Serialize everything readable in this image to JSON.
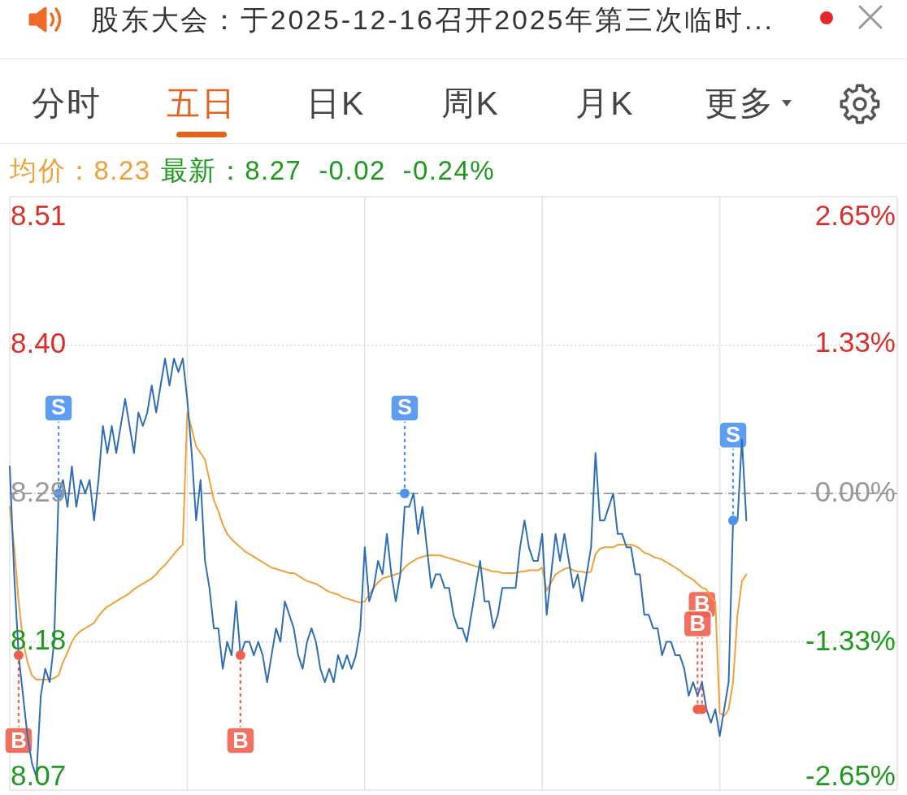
{
  "chart_data": {
    "type": "line",
    "title": "股东大会：于2025-12-16召开2025年第三次临时...",
    "subtitle": "最新：8.27 -0.02 -0.24%",
    "annotations": [
      "分时",
      "五日",
      "日K",
      "周K",
      "月K",
      "更多"
    ],
    "categories": [
      null,
      null,
      null,
      null,
      null,
      null,
      null,
      null,
      null,
      null,
      null,
      null,
      null,
      null,
      null,
      null,
      null,
      null,
      null,
      null,
      null,
      null,
      null,
      null,
      null,
      null,
      null,
      null,
      null,
      null,
      null,
      null,
      null,
      null,
      null,
      null,
      null,
      null,
      null,
      null,
      null,
      null,
      null,
      null,
      null,
      null,
      null,
      null,
      null,
      null,
      null,
      null,
      null,
      null,
      null,
      null,
      null,
      null,
      null,
      null,
      null,
      null,
      null,
      null,
      null,
      null,
      null,
      null,
      null,
      null,
      null,
      null,
      null,
      null,
      null,
      null,
      null,
      null,
      null,
      null,
      null,
      null,
      null,
      null,
      null,
      null,
      null,
      null,
      null,
      null,
      null,
      null,
      null,
      null,
      null,
      null,
      null,
      null,
      null,
      null,
      null,
      null,
      null,
      null,
      null,
      null,
      null,
      null,
      null,
      null,
      null,
      null,
      null,
      null,
      null,
      null,
      null,
      null,
      null,
      null,
      null,
      null,
      null,
      null,
      null,
      null,
      null,
      null,
      null,
      null,
      null,
      null,
      null,
      null,
      null,
      null,
      null,
      null,
      null,
      null,
      null,
      null,
      null,
      null,
      null,
      null,
      null,
      null,
      null,
      null,
      null,
      null,
      null,
      null,
      null,
      null,
      null,
      null,
      null,
      null,
      null,
      null,
      null,
      null,
      null,
      null,
      null,
      null,
      null,
      null,
      null,
      null,
      null,
      null,
      null,
      null,
      null,
      null,
      null,
      null,
      null,
      null,
      null,
      null,
      null,
      null,
      null,
      null,
      null,
      null,
      null,
      null,
      null,
      null,
      null,
      null,
      null,
      null,
      null,
      null,
      null
    ],
    "series": [
      {
        "color": "#2f6db5",
        "values": [
          8.31,
          8.23,
          8.17,
          8.14,
          8.11,
          8.09,
          8.08,
          8.14,
          8.16,
          8.15,
          8.18,
          8.29,
          8.3,
          8.28,
          8.31,
          8.28,
          8.3,
          8.29,
          8.3,
          8.27,
          8.3,
          8.34,
          8.32,
          8.34,
          8.32,
          8.34,
          8.36,
          8.34,
          8.32,
          8.35,
          8.34,
          8.35,
          8.37,
          8.35,
          8.37,
          8.39,
          8.37,
          8.39,
          8.38,
          8.39,
          8.36,
          8.32,
          8.27,
          8.3,
          8.24,
          8.22,
          8.19,
          8.19,
          8.16,
          8.18,
          8.17,
          8.21,
          8.17,
          8.18,
          8.18,
          8.17,
          8.18,
          8.17,
          8.15,
          8.17,
          8.19,
          8.18,
          8.21,
          8.2,
          8.19,
          8.17,
          8.16,
          8.18,
          8.19,
          8.18,
          8.16,
          8.15,
          8.16,
          8.15,
          8.17,
          8.16,
          8.17,
          8.16,
          8.17,
          8.19,
          8.25,
          8.21,
          8.22,
          8.24,
          8.23,
          8.26,
          8.23,
          8.21,
          8.23,
          8.28,
          8.28,
          8.29,
          8.26,
          8.28,
          8.25,
          8.22,
          8.23,
          8.23,
          8.22,
          8.22,
          8.2,
          8.19,
          8.19,
          8.18,
          8.2,
          8.22,
          8.24,
          8.21,
          8.21,
          8.19,
          8.2,
          8.22,
          8.22,
          8.22,
          8.22,
          8.25,
          8.27,
          8.25,
          8.24,
          8.24,
          8.26,
          8.2,
          8.23,
          8.26,
          8.24,
          8.26,
          8.24,
          8.22,
          8.23,
          8.21,
          8.23,
          8.25,
          8.32,
          8.27,
          8.27,
          8.28,
          8.29,
          8.26,
          8.26,
          8.25,
          8.25,
          8.23,
          8.23,
          8.2,
          8.2,
          8.19,
          8.19,
          8.17,
          8.18,
          8.18,
          8.17,
          8.17,
          8.16,
          8.14,
          8.15,
          8.14,
          8.15,
          8.13,
          8.12,
          8.13,
          8.11,
          8.13,
          8.15,
          8.27,
          8.27,
          8.33,
          8.27,
          null,
          null,
          null,
          null,
          null,
          null,
          null,
          null,
          null,
          null,
          null,
          null,
          null,
          null,
          null,
          null,
          null,
          null,
          null,
          null,
          null,
          null,
          null,
          null,
          null,
          null,
          null,
          null,
          null,
          null,
          null,
          null,
          null,
          null
        ]
      },
      {
        "name": "均价：8.23",
        "color": "#eda23a",
        "values": [
          8.28,
          8.25,
          8.21,
          8.18,
          8.165,
          8.155,
          8.152,
          8.152,
          8.152,
          8.152,
          8.153,
          8.155,
          8.165,
          8.172,
          8.18,
          8.185,
          8.188,
          8.19,
          8.192,
          8.194,
          8.199,
          8.203,
          8.206,
          8.208,
          8.21,
          8.212,
          8.214,
          8.216,
          8.219,
          8.221,
          8.223,
          8.225,
          8.227,
          8.23,
          8.234,
          8.237,
          8.241,
          8.245,
          8.249,
          8.252,
          8.35,
          8.338,
          8.325,
          8.32,
          8.315,
          8.3,
          8.285,
          8.277,
          8.267,
          8.26,
          8.256,
          8.253,
          8.25,
          8.247,
          8.245,
          8.243,
          8.241,
          8.239,
          8.237,
          8.235,
          8.234,
          8.233,
          8.232,
          8.231,
          8.231,
          8.229,
          8.227,
          8.225,
          8.224,
          8.223,
          8.221,
          8.219,
          8.217,
          8.216,
          8.215,
          8.213,
          8.212,
          8.211,
          8.21,
          8.209,
          8.21,
          8.215,
          8.22,
          8.224,
          8.227,
          8.228,
          8.229,
          8.23,
          8.231,
          8.235,
          8.238,
          8.24,
          8.242,
          8.243,
          8.244,
          8.244,
          8.244,
          8.244,
          8.243,
          8.242,
          8.241,
          8.24,
          8.239,
          8.238,
          8.237,
          8.236,
          8.235,
          8.234,
          8.233,
          8.232,
          8.232,
          8.231,
          8.231,
          8.231,
          8.231,
          8.232,
          8.232,
          8.233,
          8.233,
          8.233,
          8.235,
          8.218,
          8.224,
          8.23,
          8.232,
          8.234,
          8.235,
          8.233,
          8.232,
          8.232,
          8.231,
          8.232,
          8.245,
          8.249,
          8.25,
          8.25,
          8.25,
          8.252,
          8.252,
          8.252,
          8.252,
          8.251,
          8.249,
          8.246,
          8.245,
          8.243,
          8.242,
          8.241,
          8.239,
          8.237,
          8.235,
          8.233,
          8.23,
          8.228,
          8.226,
          8.223,
          8.22,
          8.219,
          8.213,
          8.21,
          8.127,
          8.125,
          8.13,
          8.15,
          8.2,
          8.225,
          8.23,
          null,
          null,
          null,
          null,
          null,
          null,
          null,
          null,
          null,
          null,
          null,
          null,
          null,
          null,
          null,
          null,
          null,
          null,
          null,
          null,
          null,
          null,
          null,
          null,
          null,
          null,
          null,
          null,
          null,
          null,
          null,
          null,
          null,
          null
        ]
      },
      {
        "type": "scatter",
        "color": "#f0604f",
        "marker": "circle",
        "values": [
          null,
          null,
          8.17,
          null,
          null,
          null,
          null,
          null,
          null,
          null,
          null,
          null,
          null,
          null,
          null,
          null,
          null,
          null,
          null,
          null,
          null,
          null,
          null,
          null,
          null,
          null,
          null,
          null,
          null,
          null,
          null,
          null,
          null,
          null,
          null,
          null,
          null,
          null,
          null,
          null,
          null,
          null,
          null,
          null,
          null,
          null,
          null,
          null,
          null,
          null,
          null,
          null,
          8.17,
          null,
          null,
          null,
          null,
          null,
          null,
          null,
          null,
          null,
          null,
          null,
          null,
          null,
          null,
          null,
          null,
          null,
          null,
          null,
          null,
          null,
          null,
          null,
          null,
          null,
          null,
          null,
          null,
          null,
          null,
          null,
          null,
          null,
          null,
          null,
          null,
          null,
          null,
          null,
          null,
          null,
          null,
          null,
          null,
          null,
          null,
          null,
          null,
          null,
          null,
          null,
          null,
          null,
          null,
          null,
          null,
          null,
          null,
          null,
          null,
          null,
          null,
          null,
          null,
          null,
          null,
          null,
          null,
          null,
          null,
          null,
          null,
          null,
          null,
          null,
          null,
          null,
          null,
          null,
          null,
          null,
          null,
          null,
          null,
          null,
          null,
          null,
          null,
          null,
          null,
          null,
          null,
          null,
          null,
          null,
          null,
          null,
          null,
          null,
          null,
          null,
          null,
          8.13,
          8.13,
          null,
          null,
          null,
          null,
          null,
          null,
          null,
          null,
          null,
          null,
          null,
          null,
          null,
          null,
          null,
          null,
          null,
          null,
          null,
          null,
          null,
          null,
          null,
          null,
          null,
          null,
          null,
          null,
          null,
          null,
          null,
          null,
          null,
          null,
          null,
          null,
          null,
          null,
          null,
          null,
          null,
          null,
          null,
          null
        ],
        "value_labels": [
          null,
          null,
          "B",
          null,
          null,
          null,
          null,
          null,
          null,
          null,
          null,
          null,
          null,
          null,
          null,
          null,
          null,
          null,
          null,
          null,
          null,
          null,
          null,
          null,
          null,
          null,
          null,
          null,
          null,
          null,
          null,
          null,
          null,
          null,
          null,
          null,
          null,
          null,
          null,
          null,
          null,
          null,
          null,
          null,
          null,
          null,
          null,
          null,
          null,
          null,
          null,
          null,
          "B",
          null,
          null,
          null,
          null,
          null,
          null,
          null,
          null,
          null,
          null,
          null,
          null,
          null,
          null,
          null,
          null,
          null,
          null,
          null,
          null,
          null,
          null,
          null,
          null,
          null,
          null,
          null,
          null,
          null,
          null,
          null,
          null,
          null,
          null,
          null,
          null,
          null,
          null,
          null,
          null,
          null,
          null,
          null,
          null,
          null,
          null,
          null,
          null,
          null,
          null,
          null,
          null,
          null,
          null,
          null,
          null,
          null,
          null,
          null,
          null,
          null,
          null,
          null,
          null,
          null,
          null,
          null,
          null,
          null,
          null,
          null,
          null,
          null,
          null,
          null,
          null,
          null,
          null,
          null,
          null,
          null,
          null,
          null,
          null,
          null,
          null,
          null,
          null,
          null,
          null,
          null,
          null,
          null,
          null,
          null,
          null,
          null,
          null,
          null,
          null,
          null,
          null,
          "B",
          "B",
          null,
          null,
          null,
          null,
          null,
          null,
          null,
          null,
          null,
          null,
          null,
          null,
          null,
          null,
          null,
          null,
          null,
          null,
          null,
          null,
          null,
          null,
          null,
          null,
          null,
          null,
          null,
          null,
          null,
          null,
          null,
          null,
          null,
          null,
          null,
          null,
          null,
          null,
          null,
          null,
          null,
          null,
          null,
          null
        ]
      },
      {
        "type": "scatter",
        "color": "#4d92ef",
        "marker": "circle",
        "values": [
          null,
          null,
          null,
          null,
          null,
          null,
          null,
          null,
          null,
          null,
          null,
          8.29,
          null,
          null,
          null,
          null,
          null,
          null,
          null,
          null,
          null,
          null,
          null,
          null,
          null,
          null,
          null,
          null,
          null,
          null,
          null,
          null,
          null,
          null,
          null,
          null,
          null,
          null,
          null,
          null,
          null,
          null,
          null,
          null,
          null,
          null,
          null,
          null,
          null,
          null,
          null,
          null,
          null,
          null,
          null,
          null,
          null,
          null,
          null,
          null,
          null,
          null,
          null,
          null,
          null,
          null,
          null,
          null,
          null,
          null,
          null,
          null,
          null,
          null,
          null,
          null,
          null,
          null,
          null,
          null,
          null,
          null,
          null,
          null,
          null,
          null,
          null,
          null,
          null,
          8.29,
          null,
          null,
          null,
          null,
          null,
          null,
          null,
          null,
          null,
          null,
          null,
          null,
          null,
          null,
          null,
          null,
          null,
          null,
          null,
          null,
          null,
          null,
          null,
          null,
          null,
          null,
          null,
          null,
          null,
          null,
          null,
          null,
          null,
          null,
          null,
          null,
          null,
          null,
          null,
          null,
          null,
          null,
          null,
          null,
          null,
          null,
          null,
          null,
          null,
          null,
          null,
          null,
          null,
          null,
          null,
          null,
          null,
          null,
          null,
          null,
          null,
          null,
          null,
          null,
          null,
          null,
          null,
          null,
          null,
          null,
          null,
          null,
          null,
          8.27,
          null,
          null,
          null,
          null,
          null,
          null,
          null,
          null,
          null,
          null,
          null,
          null,
          null,
          null,
          null,
          null,
          null,
          null,
          null,
          null,
          null,
          null,
          null,
          null,
          null,
          null,
          null,
          null,
          null,
          null,
          null,
          null,
          null,
          null,
          null,
          null,
          null
        ],
        "value_labels": [
          null,
          null,
          null,
          null,
          null,
          null,
          null,
          null,
          null,
          null,
          null,
          "S",
          null,
          null,
          null,
          null,
          null,
          null,
          null,
          null,
          null,
          null,
          null,
          null,
          null,
          null,
          null,
          null,
          null,
          null,
          null,
          null,
          null,
          null,
          null,
          null,
          null,
          null,
          null,
          null,
          null,
          null,
          null,
          null,
          null,
          null,
          null,
          null,
          null,
          null,
          null,
          null,
          null,
          null,
          null,
          null,
          null,
          null,
          null,
          null,
          null,
          null,
          null,
          null,
          null,
          null,
          null,
          null,
          null,
          null,
          null,
          null,
          null,
          null,
          null,
          null,
          null,
          null,
          null,
          null,
          null,
          null,
          null,
          null,
          null,
          null,
          null,
          null,
          null,
          "S",
          null,
          null,
          null,
          null,
          null,
          null,
          null,
          null,
          null,
          null,
          null,
          null,
          null,
          null,
          null,
          null,
          null,
          null,
          null,
          null,
          null,
          null,
          null,
          null,
          null,
          null,
          null,
          null,
          null,
          null,
          null,
          null,
          null,
          null,
          null,
          null,
          null,
          null,
          null,
          null,
          null,
          null,
          null,
          null,
          null,
          null,
          null,
          null,
          null,
          null,
          null,
          null,
          null,
          null,
          null,
          null,
          null,
          null,
          null,
          null,
          null,
          null,
          null,
          null,
          null,
          null,
          null,
          null,
          null,
          null,
          null,
          null,
          null,
          "S",
          null,
          null,
          null,
          null,
          null,
          null,
          null,
          null,
          null,
          null,
          null,
          null,
          null,
          null,
          null,
          null,
          null,
          null,
          null,
          null,
          null,
          null,
          null,
          null,
          null,
          null,
          null,
          null,
          null,
          null,
          null,
          null,
          null,
          null,
          null,
          null,
          null
        ]
      }
    ],
    "ylim": [
      8.07,
      8.51
    ],
    "yticks": [
      8.51,
      {
        "value": 8.4,
        "label": "8.40"
      },
      8.29,
      8.18,
      8.07
    ],
    "y2lim": [
      -2.65,
      2.65
    ],
    "y2ticks": [
      {
        "value": 2.65,
        "label": "2.65%"
      },
      {
        "value": 1.33,
        "label": "1.33%"
      },
      {
        "value": 0,
        "label": "0.00%"
      },
      {
        "value": -1.33,
        "label": "-1.33%"
      },
      {
        "value": -2.65,
        "label": "-2.65%"
      }
    ],
    "ref_lines": [
      {
        "axis": "y",
        "value": 8.29,
        "color": "#888888",
        "line_style": "dashed"
      }
    ],
    "grid": true,
    "legend": "top left",
    "marker": "none"
  }
}
